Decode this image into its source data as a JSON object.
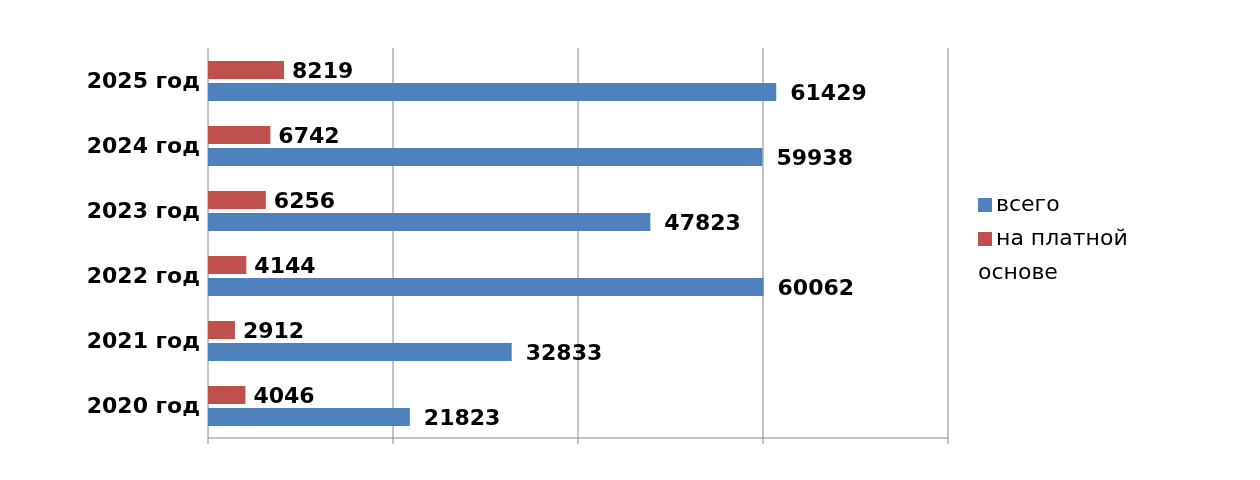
{
  "chart_data": {
    "type": "bar",
    "orientation": "horizontal",
    "categories": [
      "2025 год",
      "2024 год",
      "2023 год",
      "2022 год",
      "2021 год",
      "2020 год"
    ],
    "series": [
      {
        "name": "на платной основе",
        "color": "#c0504d",
        "values": [
          8219,
          6742,
          6256,
          4144,
          2912,
          4046
        ]
      },
      {
        "name": "всего",
        "color": "#4f81bd",
        "values": [
          61429,
          59938,
          47823,
          60062,
          32833,
          21823
        ]
      }
    ],
    "xlim": [
      0,
      80000
    ],
    "tick_labels": "y",
    "grid": "x",
    "legend": "right",
    "data_labels": true
  }
}
